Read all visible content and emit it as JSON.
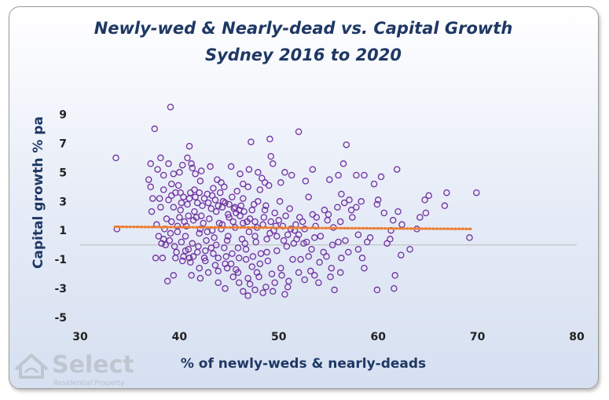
{
  "chart_data": {
    "type": "scatter",
    "title": "Newly-wed & Nearly-dead  vs. Capital Growth",
    "subtitle": "Sydney 2016 to 2020",
    "xlabel": "% of newly-weds & nearly-deads",
    "ylabel": "Capital growth % pa",
    "xlim": [
      30,
      80
    ],
    "ylim": [
      -5,
      10
    ],
    "x_ticks": [
      30,
      40,
      50,
      60,
      70,
      80
    ],
    "y_ticks": [
      9,
      7,
      5,
      3,
      1,
      -1,
      -3,
      -5
    ],
    "grid": false,
    "legend": "none",
    "colors": {
      "points": "#7030a0",
      "trendline": "#ed7d31",
      "zero_line": "#bfbfbf",
      "text": "#1f3864"
    },
    "trendline": {
      "x": [
        33.5,
        69.5
      ],
      "y": [
        1.25,
        1.1
      ],
      "style": "dotted"
    },
    "series": [
      {
        "points": [
          [
            33.6,
            6.0
          ],
          [
            33.7,
            1.1
          ],
          [
            37.1,
            5.6
          ],
          [
            37.5,
            8.0
          ],
          [
            38.1,
            6.0
          ],
          [
            37.8,
            5.2
          ],
          [
            38.4,
            4.8
          ],
          [
            39.1,
            9.5
          ],
          [
            39.2,
            4.2
          ],
          [
            39.4,
            4.9
          ],
          [
            40.3,
            5.5
          ],
          [
            40.8,
            6.0
          ],
          [
            41.0,
            6.8
          ],
          [
            41.2,
            5.6
          ],
          [
            41.6,
            4.9
          ],
          [
            42.1,
            4.4
          ],
          [
            43.1,
            5.4
          ],
          [
            43.8,
            4.5
          ],
          [
            44.2,
            4.3
          ],
          [
            45.2,
            5.4
          ],
          [
            46.1,
            4.9
          ],
          [
            46.4,
            4.2
          ],
          [
            47.0,
            5.2
          ],
          [
            47.2,
            7.1
          ],
          [
            47.9,
            5.0
          ],
          [
            48.3,
            4.6
          ],
          [
            49.1,
            7.3
          ],
          [
            49.2,
            6.1
          ],
          [
            49.4,
            5.6
          ],
          [
            50.2,
            4.3
          ],
          [
            50.6,
            5.0
          ],
          [
            51.3,
            4.8
          ],
          [
            52.0,
            7.8
          ],
          [
            52.7,
            4.4
          ],
          [
            53.4,
            5.2
          ],
          [
            55.1,
            4.5
          ],
          [
            56.0,
            4.8
          ],
          [
            56.5,
            5.6
          ],
          [
            56.8,
            6.9
          ],
          [
            57.8,
            4.8
          ],
          [
            58.6,
            4.8
          ],
          [
            59.6,
            4.2
          ],
          [
            60.3,
            4.7
          ],
          [
            61.9,
            5.2
          ],
          [
            62.0,
            2.3
          ],
          [
            61.3,
            1.0
          ],
          [
            62.3,
            -0.7
          ],
          [
            61.7,
            -2.1
          ],
          [
            61.6,
            -3.0
          ],
          [
            59.9,
            -3.1
          ],
          [
            58.4,
            -0.9
          ],
          [
            58.9,
            0.2
          ],
          [
            58.0,
            0.7
          ],
          [
            56.7,
            0.3
          ],
          [
            56.0,
            0.2
          ],
          [
            55.4,
            0.0
          ],
          [
            54.8,
            -0.8
          ],
          [
            54.1,
            -1.2
          ],
          [
            53.2,
            -1.8
          ],
          [
            52.6,
            -2.4
          ],
          [
            51.4,
            -1.0
          ],
          [
            50.9,
            -2.9
          ],
          [
            50.6,
            -3.4
          ],
          [
            49.4,
            -3.2
          ],
          [
            48.4,
            -3.3
          ],
          [
            47.6,
            -3.1
          ],
          [
            46.9,
            -3.5
          ],
          [
            46.0,
            -2.6
          ],
          [
            45.4,
            -2.2
          ],
          [
            44.6,
            -3.0
          ],
          [
            43.9,
            -1.8
          ],
          [
            42.1,
            -2.3
          ],
          [
            41.2,
            -2.1
          ],
          [
            39.4,
            -2.1
          ],
          [
            38.8,
            -2.5
          ],
          [
            38.3,
            -0.9
          ],
          [
            37.6,
            -0.9
          ],
          [
            38.2,
            0.1
          ],
          [
            39.6,
            -0.9
          ],
          [
            40.6,
            -0.4
          ],
          [
            41.4,
            -0.8
          ],
          [
            42.6,
            -1.1
          ],
          [
            43.6,
            -1.4
          ],
          [
            44.7,
            -0.8
          ],
          [
            45.7,
            -1.7
          ],
          [
            46.7,
            -1.0
          ],
          [
            47.3,
            -1.5
          ],
          [
            48.2,
            -0.6
          ],
          [
            48.9,
            -1.1
          ],
          [
            49.8,
            -0.4
          ],
          [
            50.8,
            -0.1
          ],
          [
            51.8,
            0.4
          ],
          [
            52.5,
            0.1
          ],
          [
            53.3,
            -0.3
          ],
          [
            54.2,
            0.6
          ],
          [
            55.5,
            1.2
          ],
          [
            56.2,
            1.6
          ],
          [
            57.4,
            1.9
          ],
          [
            57.3,
            2.4
          ],
          [
            58.3,
            3.0
          ],
          [
            57.1,
            3.1
          ],
          [
            56.3,
            3.5
          ],
          [
            55.9,
            2.6
          ],
          [
            54.6,
            2.4
          ],
          [
            53.4,
            2.1
          ],
          [
            53.0,
            3.3
          ],
          [
            52.4,
            1.6
          ],
          [
            51.6,
            1.0
          ],
          [
            50.4,
            1.3
          ],
          [
            49.6,
            2.2
          ],
          [
            48.7,
            2.7
          ],
          [
            47.9,
            3.0
          ],
          [
            47.3,
            2.4
          ],
          [
            46.8,
            1.6
          ],
          [
            46.1,
            2.0
          ],
          [
            45.6,
            2.6
          ],
          [
            44.9,
            2.1
          ],
          [
            44.3,
            1.4
          ],
          [
            43.7,
            2.3
          ],
          [
            43.0,
            1.8
          ],
          [
            42.3,
            2.7
          ],
          [
            41.6,
            3.3
          ],
          [
            40.9,
            2.0
          ],
          [
            40.2,
            2.9
          ],
          [
            39.6,
            3.6
          ],
          [
            38.9,
            3.1
          ],
          [
            38.1,
            2.6
          ],
          [
            37.3,
            3.2
          ],
          [
            37.1,
            4.0
          ],
          [
            38.4,
            3.8
          ],
          [
            39.9,
            4.1
          ],
          [
            41.5,
            3.8
          ],
          [
            42.8,
            3.5
          ],
          [
            44.1,
            3.6
          ],
          [
            45.0,
            2.8
          ],
          [
            46.4,
            3.2
          ],
          [
            48.1,
            3.8
          ],
          [
            49.0,
            4.1
          ],
          [
            50.1,
            3.0
          ],
          [
            51.1,
            2.5
          ],
          [
            52.1,
            1.9
          ],
          [
            53.7,
            1.3
          ],
          [
            54.9,
            1.7
          ],
          [
            59.2,
            0.5
          ],
          [
            60.0,
            3.1
          ],
          [
            59.9,
            2.8
          ],
          [
            61.2,
            0.4
          ],
          [
            63.9,
            1.1
          ],
          [
            64.7,
            3.1
          ],
          [
            65.1,
            3.4
          ],
          [
            64.8,
            2.2
          ],
          [
            66.7,
            2.7
          ],
          [
            66.9,
            3.6
          ],
          [
            69.2,
            0.5
          ],
          [
            69.9,
            3.6
          ],
          [
            58.0,
            -0.3
          ],
          [
            55.3,
            -1.6
          ],
          [
            53.6,
            -2.1
          ],
          [
            51.0,
            -2.5
          ],
          [
            50.3,
            -2.1
          ],
          [
            49.3,
            -2.0
          ],
          [
            48.0,
            -2.2
          ],
          [
            47.1,
            -2.7
          ],
          [
            46.4,
            -3.2
          ],
          [
            45.2,
            -1.3
          ],
          [
            44.5,
            -0.2
          ],
          [
            43.4,
            -0.6
          ],
          [
            42.7,
            0.3
          ],
          [
            42.0,
            0.8
          ],
          [
            41.3,
            0.1
          ],
          [
            40.6,
            0.6
          ],
          [
            39.8,
            0.9
          ],
          [
            39.0,
            0.3
          ],
          [
            38.5,
            1.1
          ],
          [
            39.2,
            1.6
          ],
          [
            40.0,
            1.9
          ],
          [
            40.7,
            1.3
          ],
          [
            41.4,
            1.7
          ],
          [
            42.1,
            1.1
          ],
          [
            42.8,
            0.9
          ],
          [
            43.5,
            0.5
          ],
          [
            44.2,
            1.1
          ],
          [
            44.9,
            0.6
          ],
          [
            45.6,
            1.2
          ],
          [
            46.3,
            0.4
          ],
          [
            47.0,
            0.9
          ],
          [
            47.7,
            0.2
          ],
          [
            48.4,
            1.4
          ],
          [
            49.1,
            0.8
          ],
          [
            49.8,
            0.6
          ],
          [
            50.5,
            0.3
          ],
          [
            51.2,
            1.1
          ],
          [
            52.0,
            0.7
          ],
          [
            52.8,
            0.2
          ],
          [
            53.6,
            0.5
          ],
          [
            40.1,
            2.4
          ],
          [
            40.8,
            2.8
          ],
          [
            41.5,
            2.3
          ],
          [
            42.2,
            2.0
          ],
          [
            42.9,
            2.9
          ],
          [
            43.6,
            3.1
          ],
          [
            44.3,
            2.6
          ],
          [
            45.0,
            1.9
          ],
          [
            45.7,
            2.2
          ],
          [
            46.4,
            1.5
          ],
          [
            47.1,
            1.8
          ],
          [
            47.8,
            1.2
          ],
          [
            48.5,
            1.9
          ],
          [
            49.2,
            1.6
          ],
          [
            38.7,
            1.8
          ],
          [
            39.4,
            2.6
          ],
          [
            40.4,
            3.3
          ],
          [
            41.1,
            3.6
          ],
          [
            41.8,
            2.9
          ],
          [
            42.5,
            3.2
          ],
          [
            43.2,
            2.5
          ],
          [
            43.9,
            2.7
          ],
          [
            44.6,
            2.9
          ],
          [
            45.3,
            3.3
          ],
          [
            46.0,
            2.4
          ],
          [
            39.7,
            -0.5
          ],
          [
            40.4,
            -0.8
          ],
          [
            41.1,
            -1.2
          ],
          [
            41.8,
            -0.5
          ],
          [
            42.5,
            -0.9
          ],
          [
            43.2,
            -0.2
          ],
          [
            43.9,
            -0.9
          ],
          [
            44.6,
            -1.3
          ],
          [
            45.3,
            -0.6
          ],
          [
            46.0,
            -0.9
          ],
          [
            46.7,
            -0.3
          ],
          [
            47.4,
            -0.8
          ],
          [
            48.1,
            -1.3
          ],
          [
            48.8,
            -0.5
          ],
          [
            37.9,
            0.6
          ],
          [
            38.6,
            0.0
          ],
          [
            36.9,
            4.5
          ],
          [
            38.9,
            5.6
          ],
          [
            40.0,
            5.0
          ],
          [
            41.3,
            5.3
          ],
          [
            42.2,
            5.1
          ],
          [
            43.4,
            3.9
          ],
          [
            44.5,
            4.0
          ],
          [
            45.8,
            3.7
          ],
          [
            46.9,
            4.0
          ],
          [
            48.6,
            4.3
          ],
          [
            47.6,
            0.6
          ],
          [
            46.6,
            0.1
          ],
          [
            45.9,
            -0.2
          ],
          [
            44.8,
            0.3
          ],
          [
            43.7,
            0.0
          ],
          [
            42.6,
            -0.4
          ],
          [
            41.9,
            -0.1
          ],
          [
            40.9,
            -0.3
          ],
          [
            40.2,
            0.2
          ],
          [
            39.5,
            -0.1
          ],
          [
            54.5,
            -0.5
          ],
          [
            56.2,
            -1.9
          ],
          [
            57.0,
            -0.5
          ],
          [
            55.6,
            -3.1
          ],
          [
            53.0,
            -0.8
          ],
          [
            52.2,
            -1.0
          ],
          [
            51.5,
            0.1
          ],
          [
            50.9,
            0.7
          ],
          [
            50.0,
            1.7
          ],
          [
            49.5,
            1.0
          ],
          [
            48.8,
            0.4
          ],
          [
            47.5,
            2.8
          ],
          [
            46.2,
            2.7
          ],
          [
            45.4,
            1.6
          ],
          [
            44.0,
            1.5
          ],
          [
            43.3,
            1.0
          ],
          [
            42.4,
            1.5
          ],
          [
            41.7,
            1.9
          ],
          [
            40.5,
            1.6
          ],
          [
            39.8,
            1.3
          ],
          [
            39.1,
            0.8
          ],
          [
            38.4,
            0.4
          ],
          [
            37.7,
            1.4
          ],
          [
            37.2,
            2.3
          ],
          [
            38.0,
            3.2
          ],
          [
            39.2,
            3.4
          ],
          [
            40.1,
            3.6
          ],
          [
            41.0,
            3.2
          ],
          [
            42.0,
            3.6
          ],
          [
            43.3,
            3.4
          ],
          [
            44.4,
            3.0
          ],
          [
            45.5,
            2.5
          ],
          [
            46.5,
            2.3
          ],
          [
            47.6,
            1.6
          ],
          [
            48.6,
            2.4
          ],
          [
            49.7,
            1.3
          ],
          [
            50.7,
            2.0
          ],
          [
            51.7,
            1.4
          ],
          [
            52.6,
            1.1
          ],
          [
            53.8,
            1.9
          ],
          [
            55.0,
            2.1
          ],
          [
            56.6,
            2.9
          ],
          [
            57.8,
            2.6
          ],
          [
            60.6,
            2.2
          ],
          [
            62.4,
            1.4
          ],
          [
            64.2,
            1.9
          ],
          [
            61.5,
            1.7
          ],
          [
            60.9,
            0.1
          ],
          [
            63.2,
            -0.3
          ],
          [
            58.6,
            -1.6
          ],
          [
            56.3,
            -0.9
          ],
          [
            55.2,
            -2.2
          ],
          [
            54.0,
            -2.6
          ],
          [
            52.0,
            -1.9
          ],
          [
            50.2,
            -1.6
          ],
          [
            49.6,
            -2.6
          ],
          [
            48.7,
            -2.9
          ],
          [
            47.8,
            -1.9
          ],
          [
            46.9,
            -2.3
          ],
          [
            45.9,
            -1.9
          ],
          [
            44.8,
            -1.6
          ],
          [
            43.9,
            -2.6
          ],
          [
            42.9,
            -1.9
          ],
          [
            42.0,
            -1.6
          ],
          [
            41.0,
            -0.9
          ],
          [
            40.3,
            -1.1
          ]
        ]
      }
    ]
  }
}
